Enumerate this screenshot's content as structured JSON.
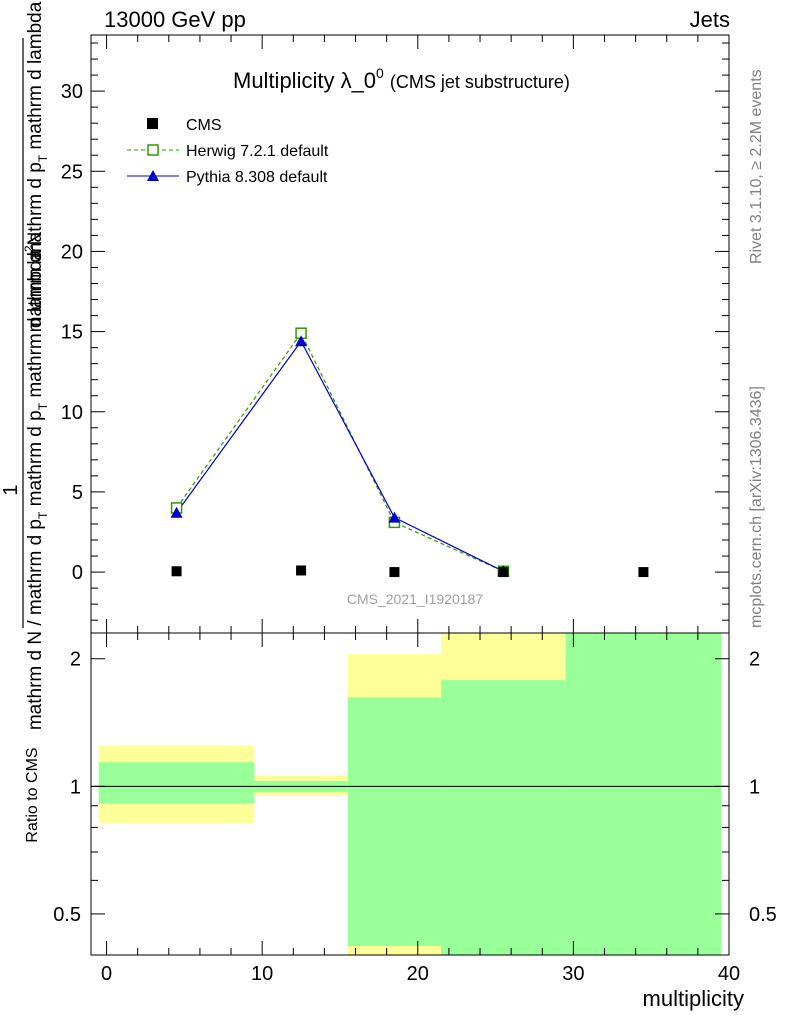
{
  "header": {
    "energy_label": "13000 GeV pp",
    "category_label": "Jets"
  },
  "side_notes": {
    "rivet": "Rivet 3.1.10, ≥ 2.2M events",
    "mcplots": "mcplots.cern.ch [arXiv:1306.3436]"
  },
  "colors": {
    "herwig": "#339900",
    "pythia": "#0000cc",
    "cms": "#000000",
    "band_outer": "#ffff99",
    "band_inner": "#99ff99"
  },
  "chart_data": [
    {
      "type": "line",
      "title": "Multiplicity λ_0",
      "title_superscript": "0",
      "subtitle": "(CMS jet substructure)",
      "watermark": "CMS_2021_I1920187",
      "ylabel_top": "1",
      "ylabel_frac_top": "mathrm d",
      "ylabel_frac_top_sup": "2",
      "ylabel_frac_top_tail": "N",
      "ylabel_main": "mathrm d N / mathrm d p_T mathrm d p_T mathrm d lambda",
      "ylabel_frac_part": "mathrm d p",
      "ylabel_frac_sub": "T",
      "ylabel_frac_tail": " mathrm d lambda",
      "ylabel_den": "mathrm d N / mathrm d p",
      "ylabel_den_sub": "T",
      "ylabel_den_tail": " mathrm d p",
      "ylabel_den_sub2": "T",
      "ylabel_den_tail2": " mathrm d lambda",
      "xlim": [
        -1,
        40
      ],
      "ylim": [
        -3.8,
        33.5
      ],
      "yticks": [
        0,
        5,
        10,
        15,
        20,
        25,
        30
      ],
      "legend_position": "top-left",
      "series": [
        {
          "name": "CMS",
          "marker": "filled-square",
          "x": [
            4.5,
            12.5,
            18.5,
            25.5,
            34.5
          ],
          "y": [
            0.05,
            0.1,
            0.0,
            0.0,
            0.0
          ]
        },
        {
          "name": "Herwig 7.2.1 default",
          "marker": "open-square",
          "line": "dashed",
          "x": [
            4.5,
            12.5,
            18.5,
            25.5
          ],
          "y": [
            4.0,
            14.9,
            3.1,
            0.05
          ]
        },
        {
          "name": "Pythia 8.308 default",
          "marker": "filled-triangle",
          "line": "solid",
          "x": [
            4.5,
            12.5,
            18.5,
            25.5
          ],
          "y": [
            3.7,
            14.4,
            3.4,
            0.05
          ]
        }
      ]
    },
    {
      "type": "area",
      "ylabel": "Ratio to CMS",
      "xlabel": "multiplicity",
      "xlim": [
        -1,
        40
      ],
      "ylim": [
        0.4,
        2.3
      ],
      "log_y": true,
      "xticks": [
        0,
        10,
        20,
        30,
        40
      ],
      "yticks": [
        0.5,
        1,
        2
      ],
      "reference_line": 1,
      "bands": [
        {
          "x0": -0.5,
          "x1": 9.5,
          "outer": [
            0.82,
            1.25
          ],
          "inner": [
            0.91,
            1.14
          ]
        },
        {
          "x0": 9.5,
          "x1": 15.5,
          "outer": [
            0.95,
            1.06
          ],
          "inner": [
            0.97,
            1.03
          ]
        },
        {
          "x0": 15.5,
          "x1": 21.5,
          "outer": [
            0.4,
            2.05
          ],
          "inner": [
            0.42,
            1.62
          ]
        },
        {
          "x0": 21.5,
          "x1": 29.5,
          "outer": [
            0.4,
            2.3
          ],
          "inner": [
            0.4,
            1.78
          ]
        },
        {
          "x0": 29.5,
          "x1": 39.5,
          "outer": [
            0.4,
            2.3
          ],
          "inner": [
            0.4,
            2.3
          ]
        }
      ]
    }
  ]
}
